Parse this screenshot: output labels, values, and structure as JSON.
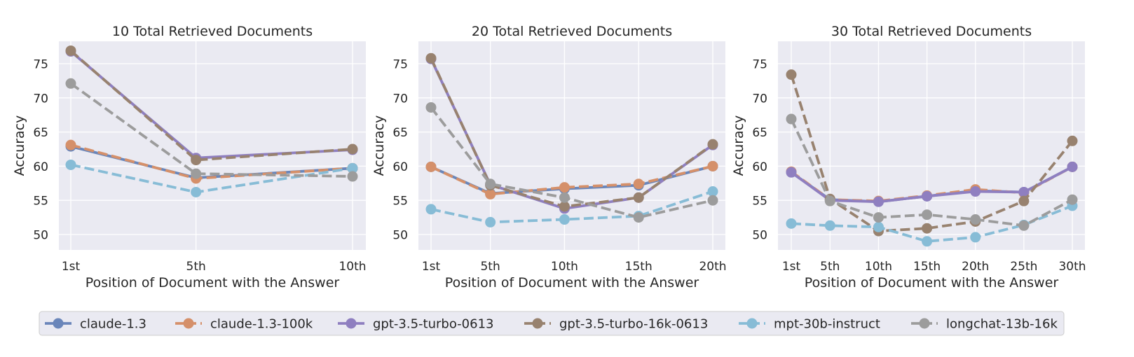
{
  "colors": {
    "claude-1.3": "#6a86ba",
    "claude-1.3-100k": "#d5906a",
    "gpt-3.5-turbo-0613": "#8f7fc0",
    "gpt-3.5-turbo-16k-0613": "#98826f",
    "mpt-30b-instruct": "#87bcd6",
    "longchat-13b-16k": "#9c9c9c"
  },
  "legend": [
    {
      "name": "claude-1.3",
      "style": "solid"
    },
    {
      "name": "claude-1.3-100k",
      "style": "dashed"
    },
    {
      "name": "gpt-3.5-turbo-0613",
      "style": "solid"
    },
    {
      "name": "gpt-3.5-turbo-16k-0613",
      "style": "dashed"
    },
    {
      "name": "mpt-30b-instruct",
      "style": "dashed"
    },
    {
      "name": "longchat-13b-16k",
      "style": "dashed"
    }
  ],
  "chart_data": [
    {
      "type": "line",
      "title": "10 Total Retrieved Documents",
      "xlabel": "Position of Document with the Answer",
      "ylabel": "Accuracy",
      "x": [
        1,
        5,
        10
      ],
      "xticks": [
        "1st",
        "5th",
        "10th"
      ],
      "yticks": [
        50,
        55,
        60,
        65,
        70,
        75
      ],
      "ylim": [
        47.5,
        78
      ],
      "grid": true,
      "series": [
        {
          "name": "claude-1.3",
          "style": "solid",
          "values": [
            62.9,
            58.3,
            59.7
          ]
        },
        {
          "name": "claude-1.3-100k",
          "style": "dashed",
          "values": [
            63.1,
            58.2,
            59.7
          ]
        },
        {
          "name": "gpt-3.5-turbo-0613",
          "style": "solid",
          "values": [
            76.8,
            61.2,
            62.4
          ]
        },
        {
          "name": "gpt-3.5-turbo-16k-0613",
          "style": "dashed",
          "values": [
            76.9,
            60.9,
            62.5
          ]
        },
        {
          "name": "mpt-30b-instruct",
          "style": "dashed",
          "values": [
            60.2,
            56.2,
            59.7
          ]
        },
        {
          "name": "longchat-13b-16k",
          "style": "dashed",
          "values": [
            72.1,
            58.9,
            58.5
          ]
        }
      ]
    },
    {
      "type": "line",
      "title": "20 Total Retrieved Documents",
      "xlabel": "Position of Document with the Answer",
      "ylabel": "Accuracy",
      "x": [
        1,
        5,
        10,
        15,
        20
      ],
      "xticks": [
        "1st",
        "5th",
        "10th",
        "15th",
        "20th"
      ],
      "yticks": [
        50,
        55,
        60,
        65,
        70,
        75
      ],
      "ylim": [
        47.5,
        78
      ],
      "grid": true,
      "series": [
        {
          "name": "claude-1.3",
          "style": "solid",
          "values": [
            59.9,
            56.0,
            56.7,
            57.2,
            60.0
          ]
        },
        {
          "name": "claude-1.3-100k",
          "style": "dashed",
          "values": [
            59.9,
            55.9,
            56.9,
            57.4,
            60.0
          ]
        },
        {
          "name": "gpt-3.5-turbo-0613",
          "style": "solid",
          "values": [
            75.7,
            57.3,
            53.8,
            55.4,
            63.1
          ]
        },
        {
          "name": "gpt-3.5-turbo-16k-0613",
          "style": "dashed",
          "values": [
            75.8,
            57.2,
            54.1,
            55.4,
            63.2
          ]
        },
        {
          "name": "mpt-30b-instruct",
          "style": "dashed",
          "values": [
            53.7,
            51.8,
            52.2,
            52.7,
            56.3
          ]
        },
        {
          "name": "longchat-13b-16k",
          "style": "dashed",
          "values": [
            68.6,
            57.4,
            55.4,
            52.5,
            55.0
          ]
        }
      ]
    },
    {
      "type": "line",
      "title": "30 Total Retrieved Documents",
      "xlabel": "Position of Document with the Answer",
      "ylabel": "Accuracy",
      "x": [
        1,
        5,
        10,
        15,
        20,
        25,
        30
      ],
      "xticks": [
        "1st",
        "5th",
        "10th",
        "15th",
        "20th",
        "25th",
        "30th"
      ],
      "yticks": [
        50,
        55,
        60,
        65,
        70,
        75
      ],
      "ylim": [
        47.5,
        78
      ],
      "grid": true,
      "series": [
        {
          "name": "claude-1.3",
          "style": "solid",
          "values": [
            59.1,
            55.1,
            54.8,
            55.6,
            56.4,
            56.2,
            59.9
          ]
        },
        {
          "name": "claude-1.3-100k",
          "style": "dashed",
          "values": [
            59.2,
            55.1,
            54.9,
            55.7,
            56.6,
            56.1,
            59.9
          ]
        },
        {
          "name": "gpt-3.5-turbo-0613",
          "style": "solid",
          "values": [
            59.1,
            55.0,
            54.8,
            55.6,
            56.3,
            56.2,
            59.9
          ]
        },
        {
          "name": "gpt-3.5-turbo-16k-0613",
          "style": "dashed",
          "values": [
            73.4,
            55.2,
            50.5,
            50.9,
            51.9,
            54.9,
            63.7
          ]
        },
        {
          "name": "mpt-30b-instruct",
          "style": "dashed",
          "values": [
            51.6,
            51.3,
            51.1,
            49.0,
            49.6,
            51.4,
            54.2
          ]
        },
        {
          "name": "longchat-13b-16k",
          "style": "dashed",
          "values": [
            66.9,
            54.9,
            52.5,
            52.9,
            52.2,
            51.3,
            55.1
          ]
        }
      ]
    }
  ]
}
